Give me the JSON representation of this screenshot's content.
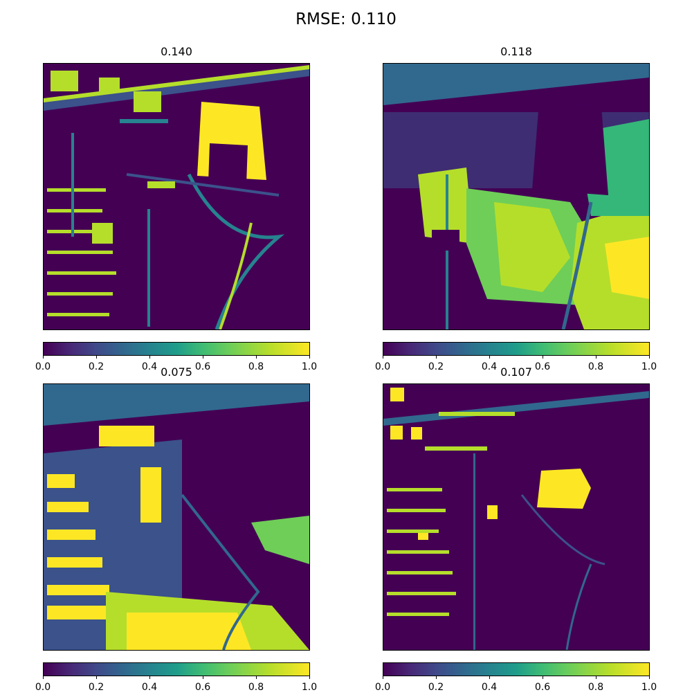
{
  "figure": {
    "suptitle": "RMSE: 0.110"
  },
  "colorbar": {
    "ticks": [
      "0.0",
      "0.2",
      "0.4",
      "0.6",
      "0.8",
      "1.0"
    ],
    "tick_values": [
      0.0,
      0.2,
      0.4,
      0.6,
      0.8,
      1.0
    ],
    "colormap": "viridis",
    "range": [
      0.0,
      1.0
    ]
  },
  "panels": [
    {
      "title": "0.140"
    },
    {
      "title": "0.118"
    },
    {
      "title": "0.075"
    },
    {
      "title": "0.107"
    }
  ],
  "chart_data": [
    {
      "type": "heatmap",
      "title": "0.140",
      "colormap": "viridis",
      "vmin": 0.0,
      "vmax": 1.0,
      "colorbar_ticks": [
        "0.0",
        "0.2",
        "0.4",
        "0.6",
        "0.8",
        "1.0"
      ]
    },
    {
      "type": "heatmap",
      "title": "0.118",
      "colormap": "viridis",
      "vmin": 0.0,
      "vmax": 1.0,
      "colorbar_ticks": [
        "0.0",
        "0.2",
        "0.4",
        "0.6",
        "0.8",
        "1.0"
      ]
    },
    {
      "type": "heatmap",
      "title": "0.075",
      "colormap": "viridis",
      "vmin": 0.0,
      "vmax": 1.0,
      "colorbar_ticks": [
        "0.0",
        "0.2",
        "0.4",
        "0.6",
        "0.8",
        "1.0"
      ]
    },
    {
      "type": "heatmap",
      "title": "0.107",
      "colormap": "viridis",
      "vmin": 0.0,
      "vmax": 1.0,
      "colorbar_ticks": [
        "0.0",
        "0.2",
        "0.4",
        "0.6",
        "0.8",
        "1.0"
      ]
    }
  ]
}
